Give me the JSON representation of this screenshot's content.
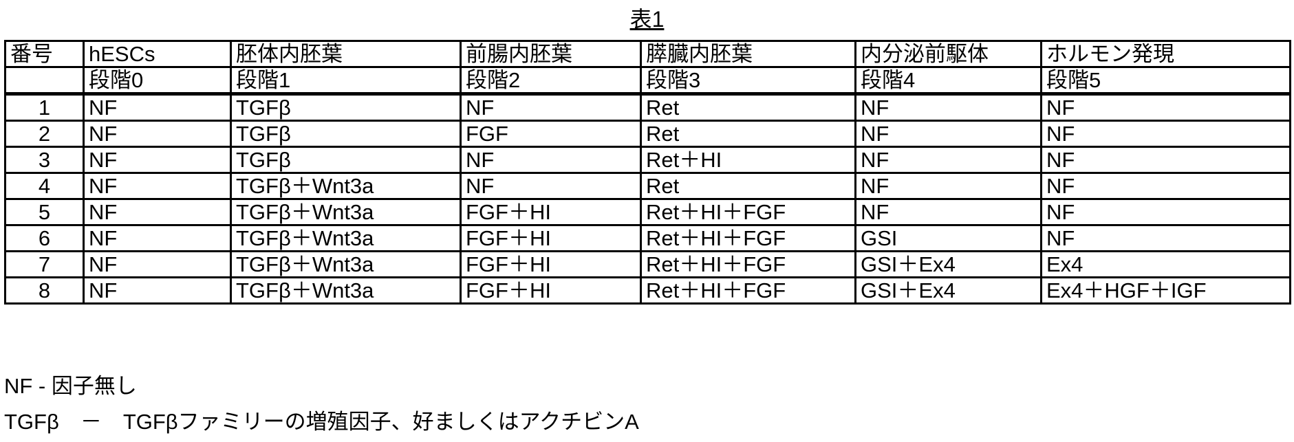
{
  "title": "表1",
  "headers": [
    "番号",
    "hESCs",
    "胚体内胚葉",
    "前腸内胚葉",
    "膵臓内胚葉",
    "内分泌前駆体",
    "ホルモン発現"
  ],
  "stages": [
    "",
    "段階0",
    "段階1",
    "段階2",
    "段階3",
    "段階4",
    "段階5"
  ],
  "rows": [
    [
      "1",
      "NF",
      "TGFβ",
      "NF",
      "Ret",
      "NF",
      "NF"
    ],
    [
      "2",
      "NF",
      "TGFβ",
      "FGF",
      "Ret",
      "NF",
      "NF"
    ],
    [
      "3",
      "NF",
      "TGFβ",
      "NF",
      "Ret＋HI",
      "NF",
      "NF"
    ],
    [
      "4",
      "NF",
      "TGFβ＋Wnt3a",
      "NF",
      "Ret",
      "NF",
      "NF"
    ],
    [
      "5",
      "NF",
      "TGFβ＋Wnt3a",
      "FGF＋HI",
      "Ret＋HI＋FGF",
      "NF",
      "NF"
    ],
    [
      "6",
      "NF",
      "TGFβ＋Wnt3a",
      "FGF＋HI",
      "Ret＋HI＋FGF",
      "GSI",
      "NF"
    ],
    [
      "7",
      "NF",
      "TGFβ＋Wnt3a",
      "FGF＋HI",
      "Ret＋HI＋FGF",
      "GSI＋Ex4",
      "Ex4"
    ],
    [
      "8",
      "NF",
      "TGFβ＋Wnt3a",
      "FGF＋HI",
      "Ret＋HI＋FGF",
      "GSI＋Ex4",
      "Ex4＋HGF＋IGF"
    ]
  ],
  "notes": [
    "NF - 因子無し",
    "TGFβ　－　TGFβファミリーの増殖因子、好ましくはアクチビンA"
  ]
}
